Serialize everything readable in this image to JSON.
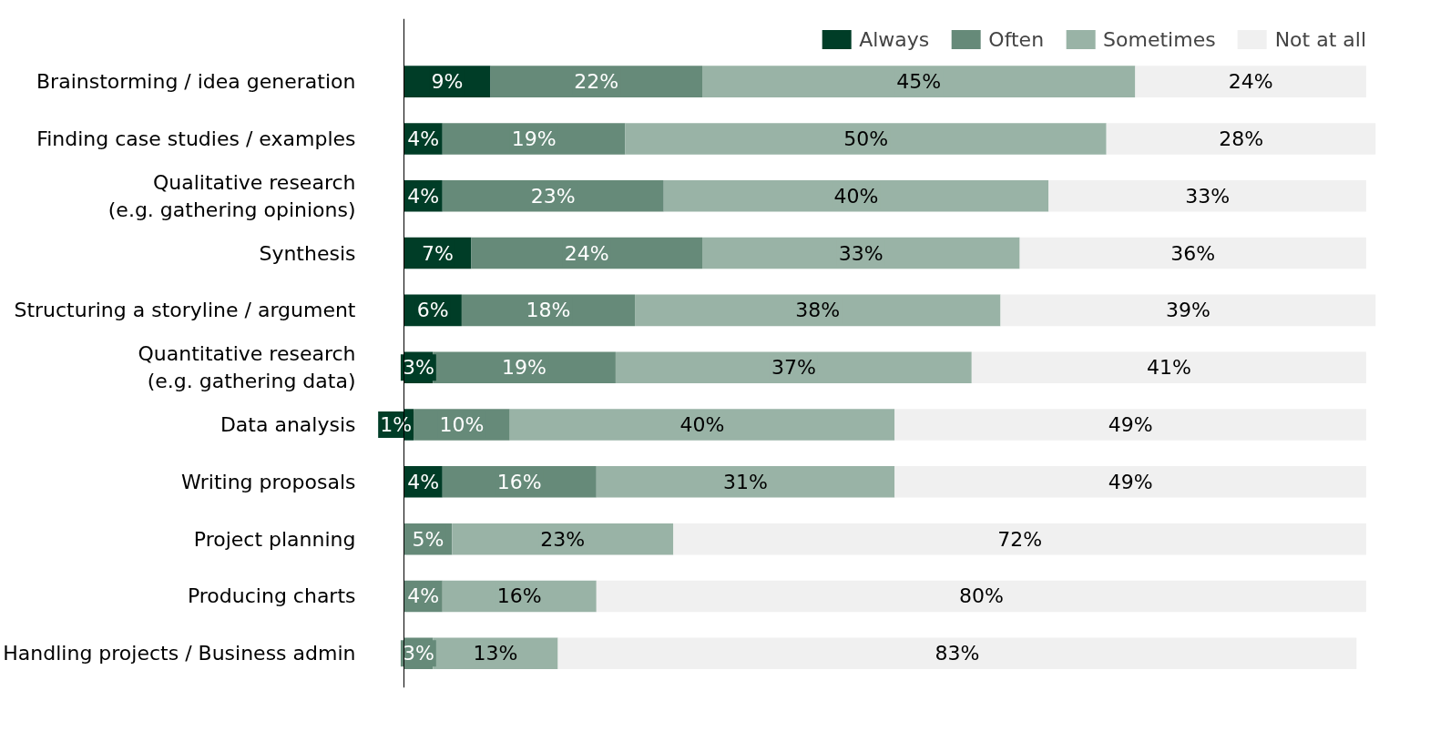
{
  "chart_data": {
    "type": "bar",
    "orientation": "horizontal",
    "stacked": true,
    "legend": "top right",
    "grid": false,
    "categories": [
      "Brainstorming / idea generation",
      "Finding case studies / examples",
      "Qualitative research\n(e.g. gathering opinions)",
      "Synthesis",
      "Structuring a storyline / argument",
      "Quantitative research\n(e.g. gathering data)",
      "Data analysis",
      "Writing proposals",
      "Project planning",
      "Producing charts",
      "Handling projects / Business admin"
    ],
    "series": [
      {
        "name": "Always",
        "color": "#003d27",
        "values": [
          9,
          4,
          4,
          7,
          6,
          3,
          1,
          4,
          0,
          0,
          0
        ],
        "value_labels": [
          "9%",
          "4%",
          "4%",
          "7%",
          "6%",
          "3%",
          "1%",
          "4%",
          null,
          null,
          null
        ]
      },
      {
        "name": "Often",
        "color": "#668a79",
        "values": [
          22,
          19,
          23,
          24,
          18,
          19,
          10,
          16,
          5,
          4,
          3
        ],
        "value_labels": [
          "22%",
          "19%",
          "23%",
          "24%",
          "18%",
          "19%",
          "10%",
          "16%",
          "5%",
          "4%",
          "3%"
        ]
      },
      {
        "name": "Sometimes",
        "color": "#99b3a6",
        "values": [
          45,
          50,
          40,
          33,
          38,
          37,
          40,
          31,
          23,
          16,
          13
        ],
        "value_labels": [
          "45%",
          "50%",
          "40%",
          "33%",
          "38%",
          "37%",
          "40%",
          "31%",
          "23%",
          "16%",
          "13%"
        ]
      },
      {
        "name": "Not at all",
        "color": "#f0f0f0",
        "values": [
          24,
          28,
          33,
          36,
          39,
          41,
          49,
          49,
          72,
          80,
          83
        ],
        "value_labels": [
          "24%",
          "28%",
          "33%",
          "36%",
          "39%",
          "41%",
          "49%",
          "49%",
          "72%",
          "80%",
          "83%"
        ]
      }
    ]
  }
}
